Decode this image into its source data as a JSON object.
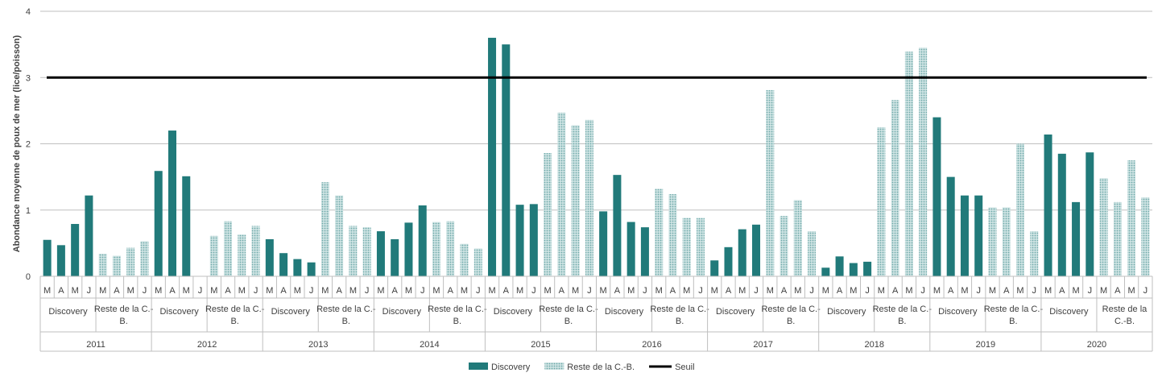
{
  "chart_data": {
    "type": "bar",
    "ylabel": "Abondance moyenne de poux de mer (lice/poisson)",
    "ylim": [
      0,
      4
    ],
    "yticks": [
      "0",
      "1",
      "2",
      "3",
      "4"
    ],
    "grid": true,
    "legend_position": "bottom",
    "threshold": {
      "name": "Seuil",
      "value": 3,
      "color": "#000000"
    },
    "series_styles": [
      {
        "name": "Discovery",
        "color": "#217A7A",
        "pattern": "solid"
      },
      {
        "name": "Reste de la C.-B.",
        "color": "#9CC7C7",
        "pattern": "dotted"
      }
    ],
    "years": [
      {
        "year": "2011",
        "groups": [
          {
            "label": [
              "Discovery"
            ],
            "series": 0,
            "months": [
              "M",
              "A",
              "M",
              "J"
            ],
            "values": [
              0.55,
              0.47,
              0.79,
              1.22
            ]
          },
          {
            "label": [
              "Reste de la C.-",
              "B."
            ],
            "series": 1,
            "months": [
              "M",
              "A",
              "M",
              "J"
            ],
            "values": [
              0.34,
              0.31,
              0.43,
              0.53
            ]
          }
        ]
      },
      {
        "year": "2012",
        "groups": [
          {
            "label": [
              "Discovery"
            ],
            "series": 0,
            "months": [
              "M",
              "A",
              "M",
              "J"
            ],
            "values": [
              1.59,
              2.2,
              1.51,
              0
            ]
          },
          {
            "label": [
              "Reste de la C.-",
              "B."
            ],
            "series": 1,
            "months": [
              "M",
              "A",
              "M",
              "J"
            ],
            "values": [
              0.61,
              0.83,
              0.63,
              0.76
            ]
          }
        ]
      },
      {
        "year": "2013",
        "groups": [
          {
            "label": [
              "Discovery"
            ],
            "series": 0,
            "months": [
              "M",
              "A",
              "M",
              "J"
            ],
            "values": [
              0.56,
              0.35,
              0.26,
              0.21
            ]
          },
          {
            "label": [
              "Reste de la C.-",
              "B."
            ],
            "series": 1,
            "months": [
              "M",
              "A",
              "M",
              "J"
            ],
            "values": [
              1.42,
              1.22,
              0.76,
              0.74
            ]
          }
        ]
      },
      {
        "year": "2014",
        "groups": [
          {
            "label": [
              "Discovery"
            ],
            "series": 0,
            "months": [
              "M",
              "A",
              "M",
              "J"
            ],
            "values": [
              0.68,
              0.56,
              0.81,
              1.07
            ]
          },
          {
            "label": [
              "Reste de la C.-",
              "B."
            ],
            "series": 1,
            "months": [
              "M",
              "A",
              "M",
              "J"
            ],
            "values": [
              0.82,
              0.83,
              0.49,
              0.42
            ]
          }
        ]
      },
      {
        "year": "2015",
        "groups": [
          {
            "label": [
              "Discovery"
            ],
            "series": 0,
            "months": [
              "M",
              "A",
              "M",
              "J"
            ],
            "values": [
              3.6,
              3.5,
              1.08,
              1.09
            ]
          },
          {
            "label": [
              "Reste de la C.-",
              "B."
            ],
            "series": 1,
            "months": [
              "M",
              "A",
              "M",
              "J"
            ],
            "values": [
              1.86,
              2.47,
              2.28,
              2.36
            ]
          }
        ]
      },
      {
        "year": "2016",
        "groups": [
          {
            "label": [
              "Discovery"
            ],
            "series": 0,
            "months": [
              "M",
              "A",
              "M",
              "J"
            ],
            "values": [
              0.98,
              1.53,
              0.82,
              0.74
            ]
          },
          {
            "label": [
              "Reste de la C.-",
              "B."
            ],
            "series": 1,
            "months": [
              "M",
              "A",
              "M",
              "J"
            ],
            "values": [
              1.32,
              1.24,
              0.88,
              0.88
            ]
          }
        ]
      },
      {
        "year": "2017",
        "groups": [
          {
            "label": [
              "Discovery"
            ],
            "series": 0,
            "months": [
              "M",
              "A",
              "M",
              "J"
            ],
            "values": [
              0.24,
              0.44,
              0.71,
              0.78
            ]
          },
          {
            "label": [
              "Reste de la C.-",
              "B."
            ],
            "series": 1,
            "months": [
              "M",
              "A",
              "M",
              "J"
            ],
            "values": [
              2.81,
              0.91,
              1.15,
              0.68
            ]
          }
        ]
      },
      {
        "year": "2018",
        "groups": [
          {
            "label": [
              "Discovery"
            ],
            "series": 0,
            "months": [
              "M",
              "A",
              "M",
              "J"
            ],
            "values": [
              0.13,
              0.3,
              0.2,
              0.22
            ]
          },
          {
            "label": [
              "Reste de la C.-",
              "B."
            ],
            "series": 1,
            "months": [
              "M",
              "A",
              "M",
              "J"
            ],
            "values": [
              2.25,
              2.66,
              3.39,
              3.45
            ]
          }
        ]
      },
      {
        "year": "2019",
        "groups": [
          {
            "label": [
              "Discovery"
            ],
            "series": 0,
            "months": [
              "M",
              "A",
              "M",
              "J"
            ],
            "values": [
              2.4,
              1.5,
              1.22,
              1.22
            ]
          },
          {
            "label": [
              "Reste de la C.-",
              "B."
            ],
            "series": 1,
            "months": [
              "M",
              "A",
              "M",
              "J"
            ],
            "values": [
              1.04,
              1.04,
              2.0,
              0.68
            ]
          }
        ]
      },
      {
        "year": "2020",
        "groups": [
          {
            "label": [
              "Discovery"
            ],
            "series": 0,
            "months": [
              "M",
              "A",
              "M",
              "J"
            ],
            "values": [
              2.14,
              1.85,
              1.12,
              1.87
            ]
          },
          {
            "label": [
              "Reste de la",
              "C.-B."
            ],
            "series": 1,
            "months": [
              "M",
              "A",
              "M",
              "J"
            ],
            "values": [
              1.48,
              1.12,
              1.75,
              1.19
            ]
          }
        ]
      }
    ]
  }
}
